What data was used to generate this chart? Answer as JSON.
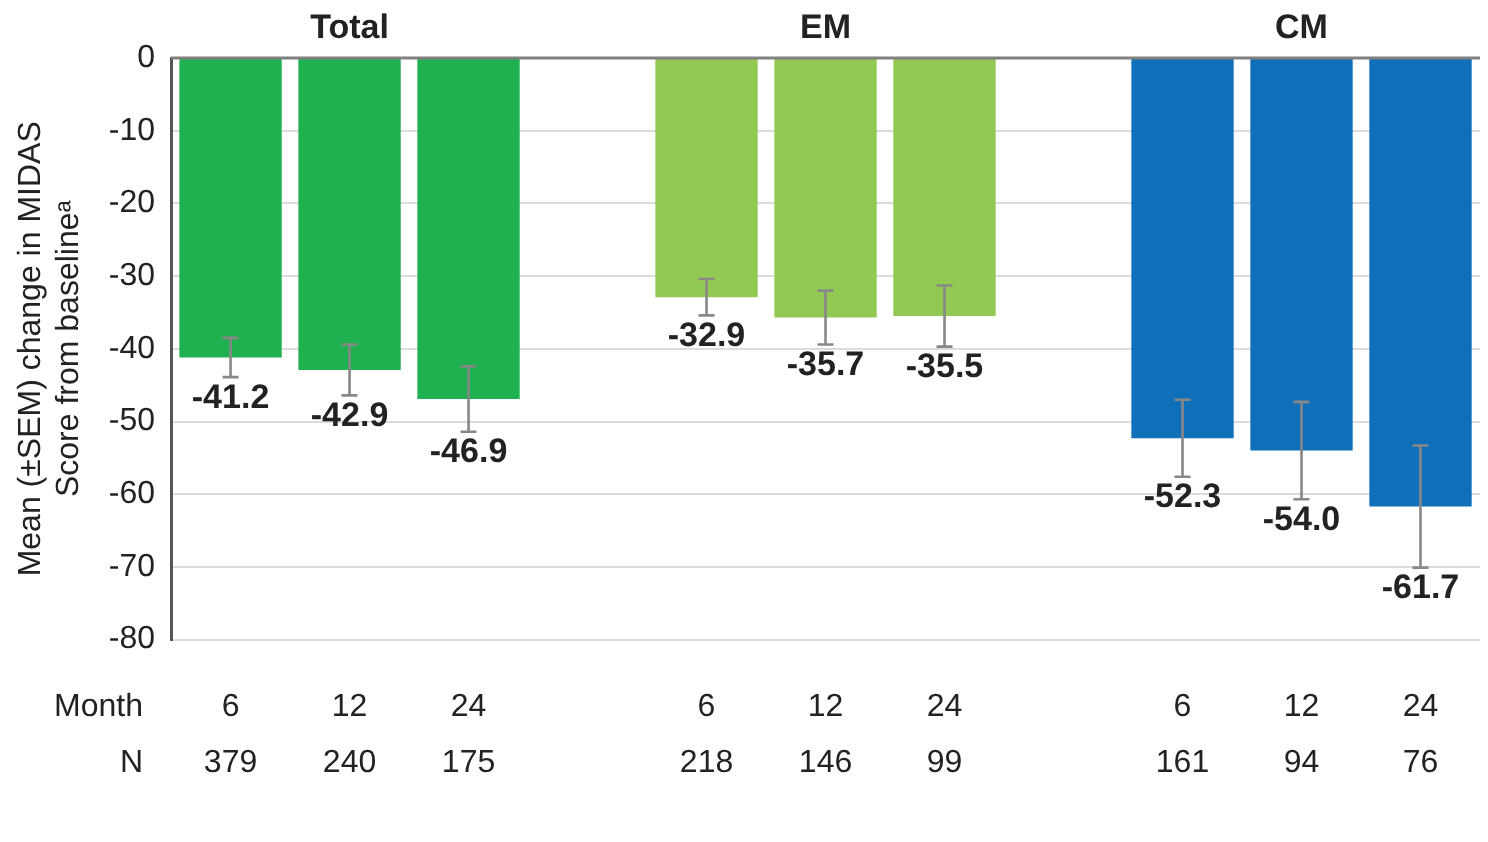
{
  "chart_data": {
    "type": "bar",
    "categories": [
      "6",
      "12",
      "24",
      null,
      "6",
      "12",
      "24",
      null,
      "6",
      "12",
      "24"
    ],
    "series": [
      {
        "name": "Total",
        "color": "#1fb04f",
        "values": [
          -41.2,
          -42.9,
          -46.9,
          null,
          null,
          null,
          null,
          null,
          null,
          null,
          null
        ],
        "errors": [
          2.7,
          3.5,
          4.5,
          null,
          null,
          null,
          null,
          null,
          null,
          null,
          null
        ],
        "value_labels": [
          "-41.2",
          "-42.9",
          "-46.9",
          null,
          null,
          null,
          null,
          null,
          null,
          null,
          null
        ]
      },
      {
        "name": "EM",
        "color": "#92c952",
        "values": [
          null,
          null,
          null,
          null,
          -32.9,
          -35.7,
          -35.5,
          null,
          null,
          null,
          null
        ],
        "errors": [
          null,
          null,
          null,
          null,
          2.5,
          3.7,
          4.2,
          null,
          null,
          null,
          null
        ],
        "value_labels": [
          null,
          null,
          null,
          null,
          "-32.9",
          "-35.7",
          "-35.5",
          null,
          null,
          null,
          null
        ]
      },
      {
        "name": "CM",
        "color": "#106fb9",
        "values": [
          null,
          null,
          null,
          null,
          null,
          null,
          null,
          null,
          -52.3,
          -54.0,
          -61.7
        ],
        "errors": [
          null,
          null,
          null,
          null,
          null,
          null,
          null,
          null,
          5.3,
          6.7,
          8.4
        ],
        "value_labels": [
          null,
          null,
          null,
          null,
          null,
          null,
          null,
          null,
          "-52.3",
          "-54.0",
          "-61.7"
        ]
      }
    ],
    "ylabel": "Mean (±SEM) change in MIDAS Score from baselineᵃ",
    "xlabel": "Month",
    "ylim": [
      -80,
      0
    ],
    "yticks": [
      -80,
      -70,
      -60,
      -50,
      -40,
      -30,
      -20,
      -10,
      0
    ],
    "grid": "y",
    "legend": false,
    "annotations": [
      "N",
      "379",
      "240",
      "175",
      "218",
      "146",
      "99",
      "161",
      "94",
      "76"
    ]
  }
}
